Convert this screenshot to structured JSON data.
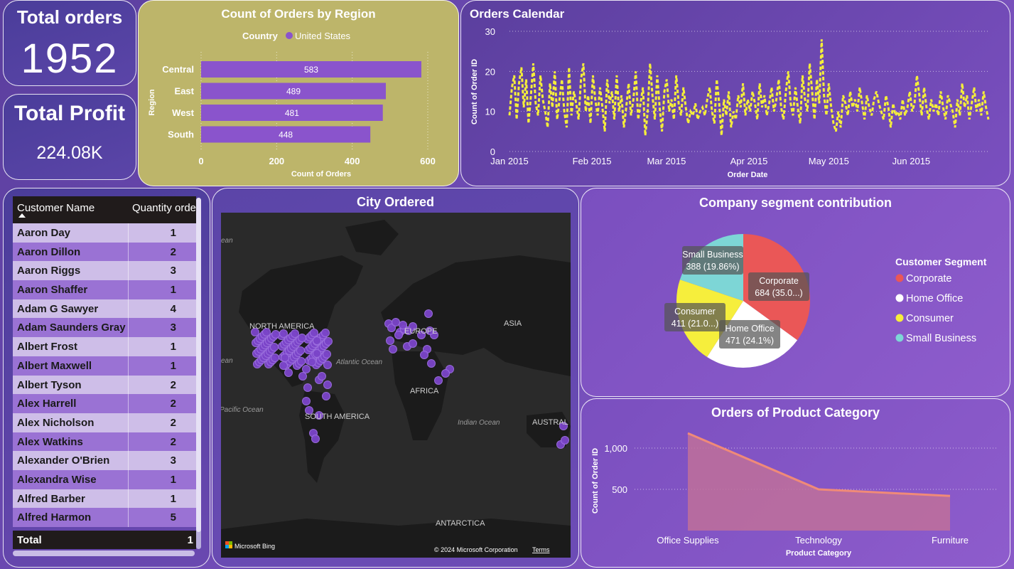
{
  "kpis": {
    "orders": {
      "title": "Total orders",
      "value": "1952"
    },
    "profit": {
      "title": "Total Profit",
      "value": "224.08K"
    }
  },
  "region_chart": {
    "title": "Count of Orders by Region",
    "legend_title": "Country",
    "legend_item": "United States",
    "ylabel": "Region",
    "xlabel": "Count of Orders",
    "bar_color": "#8a54cc",
    "bg_color": "#bdb56a"
  },
  "calendar_chart": {
    "title": "Orders Calendar",
    "ylabel": "Count of Order ID",
    "xlabel": "Order Date",
    "line_color": "#f5ee3a"
  },
  "table": {
    "headers": [
      "Customer Name",
      "Quantity orde"
    ],
    "rows": [
      [
        "Aaron Day",
        "1"
      ],
      [
        "Aaron Dillon",
        "2"
      ],
      [
        "Aaron Riggs",
        "3"
      ],
      [
        "Aaron Shaffer",
        "1"
      ],
      [
        "Adam G Sawyer",
        "4"
      ],
      [
        "Adam Saunders Gray",
        "3"
      ],
      [
        "Albert Frost",
        "1"
      ],
      [
        "Albert Maxwell",
        "1"
      ],
      [
        "Albert Tyson",
        "2"
      ],
      [
        "Alex Harrell",
        "2"
      ],
      [
        "Alex Nicholson",
        "2"
      ],
      [
        "Alex Watkins",
        "2"
      ],
      [
        "Alexander O'Brien",
        "3"
      ],
      [
        "Alexandra Wise",
        "1"
      ],
      [
        "Alfred Barber",
        "1"
      ],
      [
        "Alfred Harmon",
        "5"
      ]
    ],
    "total_label": "Total",
    "total_value": "1"
  },
  "map": {
    "title": "City Ordered",
    "labels": {
      "north_america": "NORTH AMERICA",
      "europe": "EUROPE",
      "asia": "ASIA",
      "africa": "AFRICA",
      "south_america": "SOUTH AMERICA",
      "antarctica": "ANTARCTICA",
      "atlantic": "Atlantic Ocean",
      "pacific": "Pacific Ocean",
      "indian": "Indian Ocean",
      "australia": "AUSTRAL",
      "ocean_left1": "ean",
      "ocean_left2": "ean"
    },
    "bing": "Microsoft Bing",
    "copyright": "© 2024 Microsoft Corporation",
    "terms": "Terms",
    "dot_color": "#7b45c9"
  },
  "segment_chart": {
    "title": "Company segment contribution",
    "legend_title": "Customer Segment",
    "slice_labels": {
      "corporate": [
        "Corporate",
        "684 (35.0...)"
      ],
      "home_office": [
        "Home Office",
        "471 (24.1%)"
      ],
      "consumer": [
        "Consumer",
        "411 (21.0...)"
      ],
      "small_business": [
        "Small Business",
        "388 (19.86%)"
      ]
    }
  },
  "category_chart": {
    "title": "Orders of Product Category",
    "ylabel": "Count of Order ID",
    "xlabel": "Product Category",
    "line_color": "#f08a78",
    "fill_color": "#c0709a"
  },
  "chart_data": [
    {
      "type": "bar",
      "orientation": "horizontal",
      "title": "Count of Orders by Region",
      "categories": [
        "Central",
        "East",
        "West",
        "South"
      ],
      "values": [
        583,
        489,
        481,
        448
      ],
      "xlim": [
        0,
        600
      ],
      "xticks": [
        0,
        200,
        400,
        600
      ],
      "xlabel": "Count of Orders",
      "ylabel": "Region"
    },
    {
      "type": "line",
      "title": "Orders Calendar",
      "xlabel": "Order Date",
      "ylabel": "Count of Order ID",
      "ylim": [
        0,
        30
      ],
      "yticks": [
        0,
        10,
        20,
        30
      ],
      "x_ticks": [
        "Jan 2015",
        "Feb 2015",
        "Mar 2015",
        "Apr 2015",
        "May 2015",
        "Jun 2015"
      ],
      "x_range_days": 180,
      "values": [
        9,
        16,
        19,
        8,
        17,
        21,
        11,
        18,
        7,
        14,
        22,
        12,
        9,
        19,
        13,
        10,
        6,
        17,
        11,
        20,
        8,
        13,
        18,
        10,
        6,
        21,
        9,
        15,
        12,
        8,
        18,
        22,
        10,
        14,
        7,
        19,
        13,
        9,
        16,
        11,
        5,
        18,
        12,
        15,
        8,
        19,
        10,
        14,
        6,
        11,
        17,
        9,
        13,
        20,
        8,
        12,
        16,
        4,
        10,
        22,
        14,
        8,
        19,
        11,
        5,
        15,
        18,
        10,
        13,
        8,
        19,
        12,
        9,
        16,
        11,
        7,
        10,
        9,
        12,
        8,
        10,
        11,
        9,
        13,
        16,
        10,
        7,
        18,
        12,
        4,
        13,
        9,
        15,
        6,
        10,
        8,
        14,
        11,
        17,
        9,
        13,
        10,
        15,
        12,
        8,
        17,
        11,
        14,
        9,
        12,
        16,
        10,
        13,
        18,
        11,
        8,
        15,
        20,
        12,
        9,
        16,
        11,
        7,
        19,
        13,
        10,
        22,
        15,
        8,
        18,
        12,
        28,
        14,
        9,
        17,
        11,
        7,
        5,
        10,
        6,
        14,
        12,
        9,
        15,
        11,
        13,
        10,
        16,
        12,
        8,
        14,
        11,
        9,
        13,
        15,
        12,
        10,
        8,
        14,
        11,
        6,
        12,
        9,
        10,
        8,
        13,
        9,
        11,
        15,
        10,
        12,
        19,
        14,
        9,
        16,
        11,
        8,
        13,
        10,
        12,
        9,
        15,
        11,
        8,
        14,
        12,
        10,
        6,
        13,
        9,
        17,
        11,
        14,
        8,
        12,
        16,
        10,
        13,
        9,
        15,
        11,
        8
      ]
    },
    {
      "type": "pie",
      "title": "Company segment contribution",
      "categories": [
        "Corporate",
        "Home Office",
        "Consumer",
        "Small Business"
      ],
      "values": [
        684,
        471,
        411,
        388
      ],
      "labels": [
        "684 (35.0...)",
        "471 (24.1%)",
        "411 (21.0...)",
        "388 (19.86%)"
      ],
      "colors": [
        "#ea5757",
        "#ffffff",
        "#f6ee3c",
        "#7dd6d6"
      ],
      "legend_title": "Customer Segment",
      "legend": "right"
    },
    {
      "type": "area",
      "title": "Orders of Product Category",
      "categories": [
        "Office Supplies",
        "Technology",
        "Furniture"
      ],
      "values": [
        1180,
        500,
        420
      ],
      "ylim": [
        0,
        1250
      ],
      "yticks": [
        500,
        1000
      ],
      "ytick_labels": [
        "500",
        "1,000"
      ],
      "xlabel": "Product Category",
      "ylabel": "Count of Order ID"
    }
  ]
}
